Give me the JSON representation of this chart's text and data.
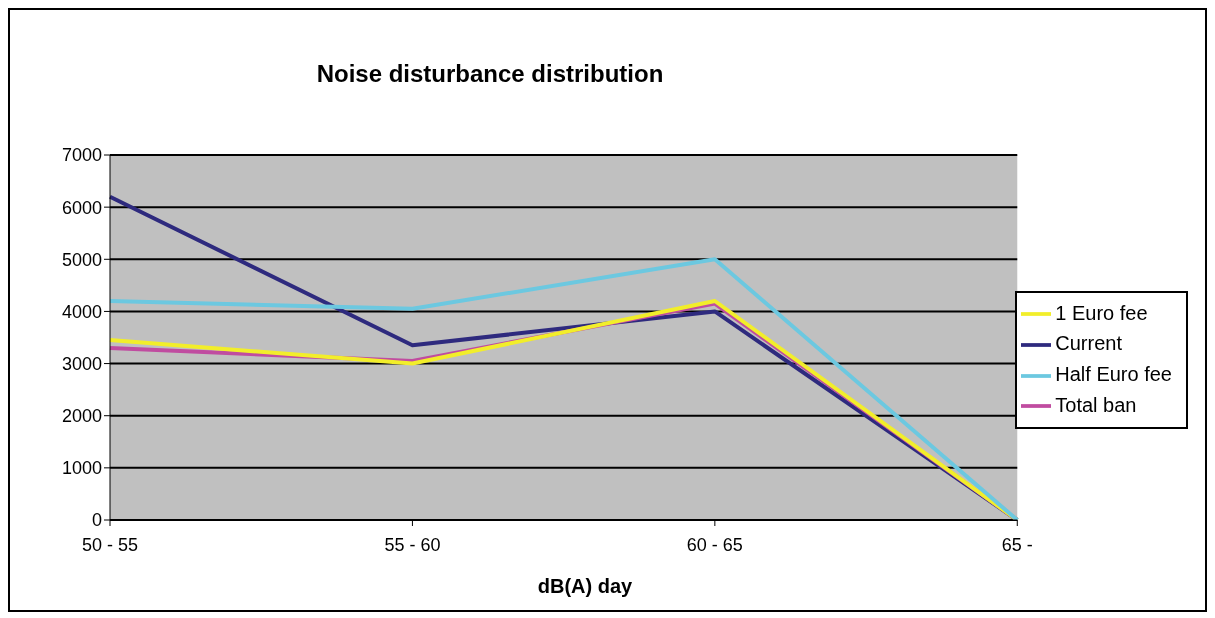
{
  "chart_data": {
    "type": "line",
    "title": "Noise disturbance distribution",
    "xlabel": "dB(A) day",
    "categories": [
      "50 - 55",
      "55 - 60",
      "60 - 65",
      "65 -"
    ],
    "series": [
      {
        "name": "Current",
        "color": "#2e2a7e",
        "values": [
          6200,
          3350,
          4000,
          0
        ]
      },
      {
        "name": "Total ban",
        "color": "#c04ca0",
        "values": [
          3300,
          3050,
          4150,
          0
        ]
      },
      {
        "name": "1 Euro fee",
        "color": "#f2ee2a",
        "values": [
          3450,
          3000,
          4200,
          0
        ]
      },
      {
        "name": "Half Euro fee",
        "color": "#6cc8e0",
        "values": [
          4200,
          4050,
          5000,
          0
        ]
      }
    ],
    "ylim": [
      0,
      7000
    ],
    "yticks": [
      0,
      1000,
      2000,
      3000,
      4000,
      5000,
      6000,
      7000
    ],
    "grid": "y",
    "legend": "right",
    "marker": "none",
    "line_style": "solid"
  }
}
